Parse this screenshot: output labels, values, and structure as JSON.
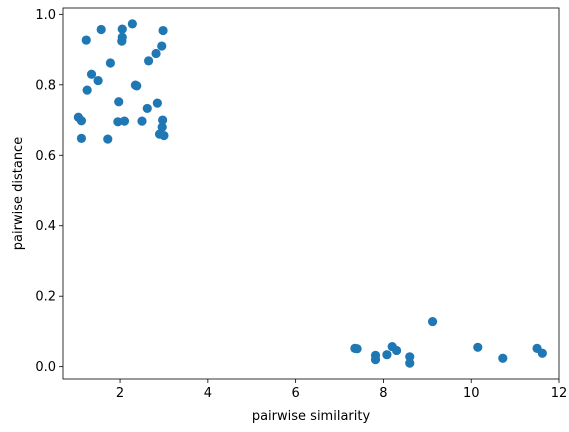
{
  "chart_data": {
    "type": "scatter",
    "title": "",
    "xlabel": "pairwise similarity",
    "ylabel": "pairwise distance",
    "xlim": [
      0.7,
      12.0
    ],
    "ylim": [
      -0.035,
      1.018
    ],
    "xticks": [
      2,
      4,
      6,
      8,
      10,
      12
    ],
    "xtick_labels": [
      "2",
      "4",
      "6",
      "8",
      "10",
      "12"
    ],
    "yticks": [
      0.0,
      0.2,
      0.4,
      0.6,
      0.8,
      1.0
    ],
    "ytick_labels": [
      "0.0",
      "0.2",
      "0.4",
      "0.6",
      "0.8",
      "1.0"
    ],
    "grid": false,
    "marker_color": "#1f77b4",
    "series": [
      {
        "points": [
          [
            1.23,
            0.927
          ],
          [
            1.57,
            0.957
          ],
          [
            2.05,
            0.958
          ],
          [
            2.28,
            0.973
          ],
          [
            2.98,
            0.954
          ],
          [
            2.05,
            0.935
          ],
          [
            2.04,
            0.924
          ],
          [
            2.95,
            0.91
          ],
          [
            2.82,
            0.889
          ],
          [
            1.35,
            0.83
          ],
          [
            1.78,
            0.862
          ],
          [
            2.65,
            0.868
          ],
          [
            1.5,
            0.812
          ],
          [
            1.25,
            0.785
          ],
          [
            2.35,
            0.799
          ],
          [
            2.38,
            0.797
          ],
          [
            1.97,
            0.752
          ],
          [
            2.85,
            0.748
          ],
          [
            2.62,
            0.733
          ],
          [
            1.05,
            0.708
          ],
          [
            1.12,
            0.698
          ],
          [
            1.95,
            0.695
          ],
          [
            2.1,
            0.697
          ],
          [
            2.5,
            0.697
          ],
          [
            2.97,
            0.7
          ],
          [
            2.96,
            0.68
          ],
          [
            2.9,
            0.66
          ],
          [
            3.0,
            0.656
          ],
          [
            1.12,
            0.648
          ],
          [
            1.72,
            0.646
          ],
          [
            7.35,
            0.052
          ],
          [
            7.4,
            0.051
          ],
          [
            7.82,
            0.032
          ],
          [
            7.82,
            0.02
          ],
          [
            8.08,
            0.034
          ],
          [
            8.2,
            0.057
          ],
          [
            8.3,
            0.046
          ],
          [
            8.6,
            0.028
          ],
          [
            8.6,
            0.01
          ],
          [
            9.12,
            0.128
          ],
          [
            10.15,
            0.055
          ],
          [
            10.72,
            0.024
          ],
          [
            11.5,
            0.052
          ],
          [
            11.62,
            0.038
          ]
        ]
      }
    ]
  }
}
